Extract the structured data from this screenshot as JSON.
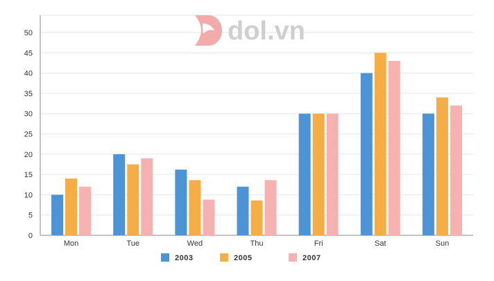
{
  "brand": {
    "name": "dol.vn"
  },
  "colors": {
    "2003": "#4d94d6",
    "2005": "#f5ad46",
    "2007": "#f6b1b1",
    "grid": "#e6e6e6",
    "axis": "#888888",
    "logo_mark": "#f2aaaa",
    "logo_text": "#cfcfcf"
  },
  "chart_data": {
    "type": "bar",
    "categories": [
      "Mon",
      "Tue",
      "Wed",
      "Thu",
      "Fri",
      "Sat",
      "Sun"
    ],
    "series": [
      {
        "name": "2003",
        "values": [
          10,
          20,
          16.2,
          12,
          30,
          40,
          30
        ]
      },
      {
        "name": "2005",
        "values": [
          14,
          17.5,
          13.6,
          8.6,
          30,
          45,
          34
        ]
      },
      {
        "name": "2007",
        "values": [
          12,
          19,
          8.8,
          13.6,
          30,
          43,
          32
        ]
      }
    ],
    "yticks": [
      0,
      5,
      10,
      15,
      20,
      25,
      30,
      35,
      40,
      45,
      50
    ],
    "ylim": [
      0,
      50
    ],
    "grid": true,
    "legend_position": "bottom",
    "title": "",
    "xlabel": "",
    "ylabel": ""
  }
}
